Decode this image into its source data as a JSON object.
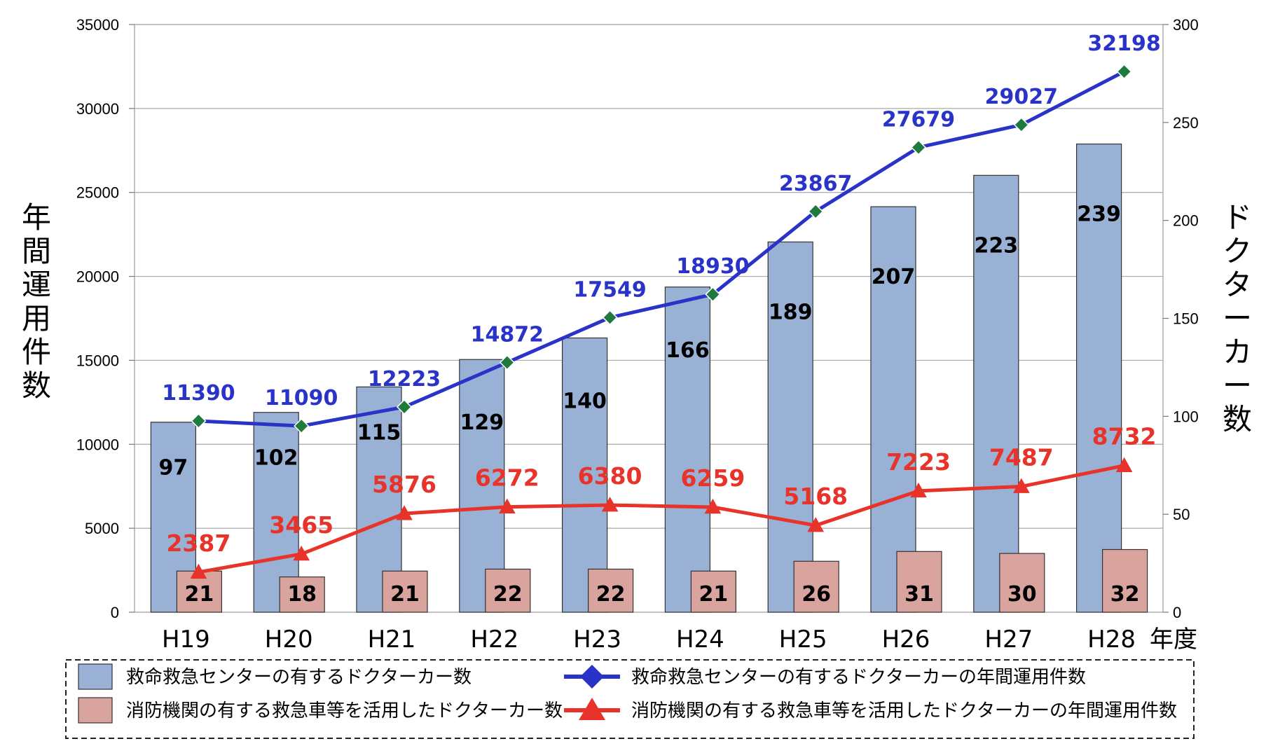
{
  "chart_data": {
    "type": "bar",
    "categories": [
      "H19",
      "H20",
      "H21",
      "H22",
      "H23",
      "H24",
      "H25",
      "H26",
      "H27",
      "H28"
    ],
    "x_unit_label": "年度",
    "y_left_label": "年間運用件数",
    "y_right_label": "ドクターカー数",
    "y_left_lim": [
      0,
      35000
    ],
    "y_left_ticks": [
      0,
      5000,
      10000,
      15000,
      20000,
      25000,
      30000,
      35000
    ],
    "y_right_lim": [
      0,
      300
    ],
    "y_right_ticks": [
      0,
      50,
      100,
      150,
      200,
      250,
      300
    ],
    "grid": true,
    "legend_position": "bottom",
    "series": [
      {
        "name": "救命救急センターの有するドクターカー数",
        "kind": "bar",
        "axis": "right",
        "color": "#9ab1d6",
        "values": [
          97,
          102,
          115,
          129,
          140,
          166,
          189,
          207,
          223,
          239
        ]
      },
      {
        "name": "消防機関の有する救急車等を活用したドクターカー数",
        "kind": "bar",
        "axis": "right",
        "color": "#d9a39e",
        "values": [
          21,
          18,
          21,
          22,
          22,
          21,
          26,
          31,
          30,
          32
        ]
      },
      {
        "name": "救命救急センターの有するドクターカーの年間運用件数",
        "kind": "line",
        "marker": "diamond",
        "axis": "left",
        "color": "#2a33c8",
        "values": [
          11390,
          11090,
          12223,
          14872,
          17549,
          18930,
          23867,
          27679,
          29027,
          32198
        ]
      },
      {
        "name": "消防機関の有する救急車等を活用したドクターカーの年間運用件数",
        "kind": "line",
        "marker": "triangle",
        "axis": "left",
        "color": "#e8332a",
        "values": [
          2387,
          3465,
          5876,
          6272,
          6380,
          6259,
          5168,
          7223,
          7487,
          8732
        ]
      }
    ]
  }
}
